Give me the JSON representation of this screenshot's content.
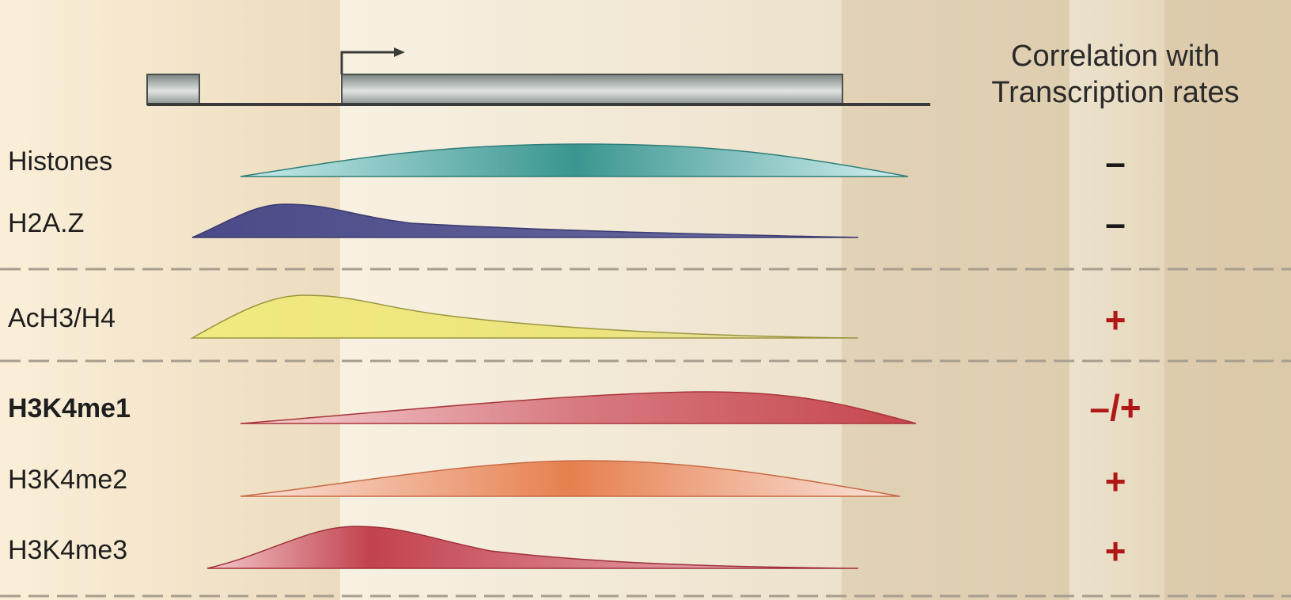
{
  "header": {
    "line1": "Correlation with",
    "line2": "Transcription rates"
  },
  "rows": [
    {
      "label": "Histones",
      "sign": "–"
    },
    {
      "label": "H2A.Z",
      "sign": "–"
    },
    {
      "label": "AcH3/H4",
      "sign": "+"
    },
    {
      "label": "H3K4me1",
      "sign": "–/+"
    },
    {
      "label": "H3K4me2",
      "sign": "+"
    },
    {
      "label": "H3K4me3",
      "sign": "+"
    }
  ],
  "colors": {
    "histones": "#3a9590",
    "h2az": "#4a4a88",
    "ach3h4": "#eee67a",
    "h3k4me1": "#c5464c",
    "h3k4me2": "#e6804f",
    "h3k4me3": "#c2424e",
    "sign_dark": "#1a1a1a",
    "sign_red": "#b01818"
  }
}
